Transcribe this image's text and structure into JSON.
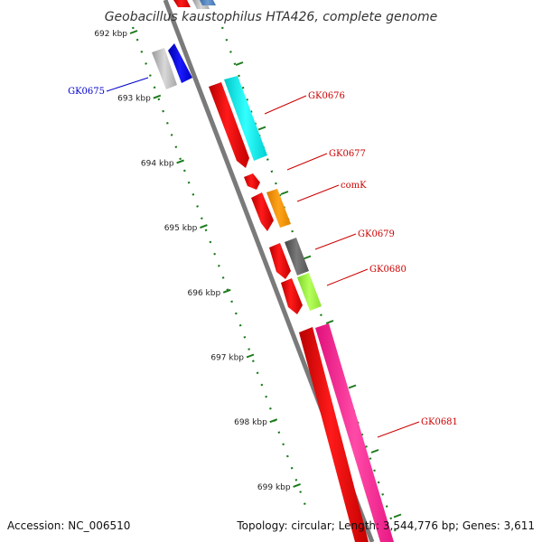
{
  "header": {
    "title": "Geobacillus kaustophilus HTA426, complete genome"
  },
  "footer": {
    "accession": "Accession: NC_006510",
    "summary": "Topology: circular; Length: 3,544,776 bp; Genes: 3,611"
  },
  "scale": {
    "ticks": [
      {
        "label": "692 kbp",
        "value": 692
      },
      {
        "label": "693 kbp",
        "value": 693
      },
      {
        "label": "694 kbp",
        "value": 694
      },
      {
        "label": "695 kbp",
        "value": 695
      },
      {
        "label": "696 kbp",
        "value": 696
      },
      {
        "label": "697 kbp",
        "value": 697
      },
      {
        "label": "698 kbp",
        "value": 698
      },
      {
        "label": "699 kbp",
        "value": 699
      }
    ]
  },
  "genes": [
    {
      "label": "GK0675",
      "color": "#0000cc",
      "strand": "reverse"
    },
    {
      "label": "GK0676",
      "color": "#cc0000",
      "strand": "forward"
    },
    {
      "label": "GK0677",
      "color": "#cc0000",
      "strand": "forward"
    },
    {
      "label": "comK",
      "color": "#cc0000",
      "strand": "forward"
    },
    {
      "label": "GK0679",
      "color": "#cc0000",
      "strand": "forward"
    },
    {
      "label": "GK0680",
      "color": "#cc0000",
      "strand": "forward"
    },
    {
      "label": "GK0681",
      "color": "#cc0000",
      "strand": "forward"
    }
  ],
  "colors": {
    "backbone": "#7a7a7a",
    "tick": "#1a7a1a",
    "cds": "#ee0000",
    "label_forward": "#cc0000",
    "label_reverse": "#0000cc"
  }
}
